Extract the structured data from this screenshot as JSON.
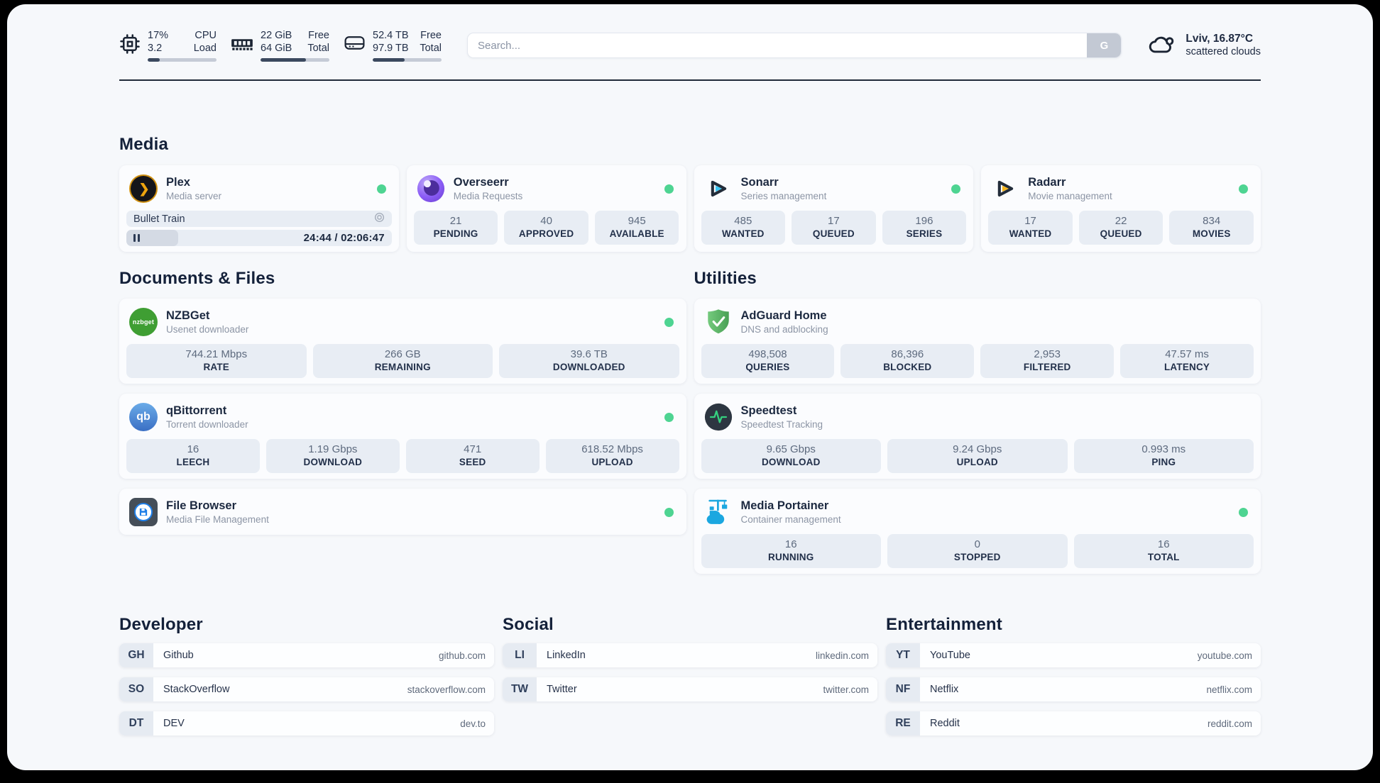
{
  "colors": {
    "status_online": "#4ed492",
    "accent_navy": "#1e2a3d"
  },
  "header": {
    "system_widgets": [
      {
        "icon": "cpu-icon",
        "value_top": "17%",
        "value_bottom": "3.2",
        "label_top": "CPU",
        "label_bottom": "Load",
        "progress_percent": 18
      },
      {
        "icon": "memory-icon",
        "value_top": "22 GiB",
        "value_bottom": "64 GiB",
        "label_top": "Free",
        "label_bottom": "Total",
        "progress_percent": 66
      },
      {
        "icon": "disk-icon",
        "value_top": "52.4 TB",
        "value_bottom": "97.9 TB",
        "label_top": "Free",
        "label_bottom": "Total",
        "progress_percent": 46
      }
    ],
    "search": {
      "placeholder": "Search...",
      "button_label": "G"
    },
    "weather": {
      "location": "Lviv, 16.87°C",
      "condition": "scattered clouds"
    }
  },
  "media": {
    "title": "Media",
    "plex": {
      "name": "Plex",
      "description": "Media server",
      "icon_glyph": "❯",
      "now_playing": "Bullet Train",
      "time": "24:44 / 02:06:47",
      "progress_percent": 19.5
    },
    "overseerr": {
      "name": "Overseerr",
      "description": "Media Requests",
      "stats": [
        {
          "value": "21",
          "label": "PENDING"
        },
        {
          "value": "40",
          "label": "APPROVED"
        },
        {
          "value": "945",
          "label": "AVAILABLE"
        }
      ]
    },
    "sonarr": {
      "name": "Sonarr",
      "description": "Series management",
      "stats": [
        {
          "value": "485",
          "label": "WANTED"
        },
        {
          "value": "17",
          "label": "QUEUED"
        },
        {
          "value": "196",
          "label": "SERIES"
        }
      ]
    },
    "radarr": {
      "name": "Radarr",
      "description": "Movie management",
      "stats": [
        {
          "value": "17",
          "label": "WANTED"
        },
        {
          "value": "22",
          "label": "QUEUED"
        },
        {
          "value": "834",
          "label": "MOVIES"
        }
      ]
    }
  },
  "documents": {
    "title": "Documents & Files",
    "nzbget": {
      "name": "NZBGet",
      "description": "Usenet downloader",
      "icon_text": "nzbget",
      "stats": [
        {
          "value": "744.21 Mbps",
          "label": "RATE"
        },
        {
          "value": "266 GB",
          "label": "REMAINING"
        },
        {
          "value": "39.6 TB",
          "label": "DOWNLOADED"
        }
      ]
    },
    "qbittorrent": {
      "name": "qBittorrent",
      "description": "Torrent downloader",
      "icon_text": "qb",
      "stats": [
        {
          "value": "16",
          "label": "LEECH"
        },
        {
          "value": "1.19 Gbps",
          "label": "DOWNLOAD"
        },
        {
          "value": "471",
          "label": "SEED"
        },
        {
          "value": "618.52 Mbps",
          "label": "UPLOAD"
        }
      ]
    },
    "filebrowser": {
      "name": "File Browser",
      "description": "Media File Management"
    }
  },
  "utilities": {
    "title": "Utilities",
    "adguard": {
      "name": "AdGuard Home",
      "description": "DNS and adblocking",
      "stats": [
        {
          "value": "498,508",
          "label": "QUERIES"
        },
        {
          "value": "86,396",
          "label": "BLOCKED"
        },
        {
          "value": "2,953",
          "label": "FILTERED"
        },
        {
          "value": "47.57 ms",
          "label": "LATENCY"
        }
      ]
    },
    "speedtest": {
      "name": "Speedtest",
      "description": "Speedtest Tracking",
      "stats": [
        {
          "value": "9.65 Gbps",
          "label": "DOWNLOAD"
        },
        {
          "value": "9.24 Gbps",
          "label": "UPLOAD"
        },
        {
          "value": "0.993 ms",
          "label": "PING"
        }
      ]
    },
    "portainer": {
      "name": "Media Portainer",
      "description": "Container management",
      "stats": [
        {
          "value": "16",
          "label": "RUNNING"
        },
        {
          "value": "0",
          "label": "STOPPED"
        },
        {
          "value": "16",
          "label": "TOTAL"
        }
      ]
    }
  },
  "bookmarks": [
    {
      "title": "Developer",
      "links": [
        {
          "abbr": "GH",
          "name": "Github",
          "url": "github.com"
        },
        {
          "abbr": "SO",
          "name": "StackOverflow",
          "url": "stackoverflow.com"
        },
        {
          "abbr": "DT",
          "name": "DEV",
          "url": "dev.to"
        }
      ]
    },
    {
      "title": "Social",
      "links": [
        {
          "abbr": "LI",
          "name": "LinkedIn",
          "url": "linkedin.com"
        },
        {
          "abbr": "TW",
          "name": "Twitter",
          "url": "twitter.com"
        }
      ]
    },
    {
      "title": "Entertainment",
      "links": [
        {
          "abbr": "YT",
          "name": "YouTube",
          "url": "youtube.com"
        },
        {
          "abbr": "NF",
          "name": "Netflix",
          "url": "netflix.com"
        },
        {
          "abbr": "RE",
          "name": "Reddit",
          "url": "reddit.com"
        }
      ]
    }
  ]
}
